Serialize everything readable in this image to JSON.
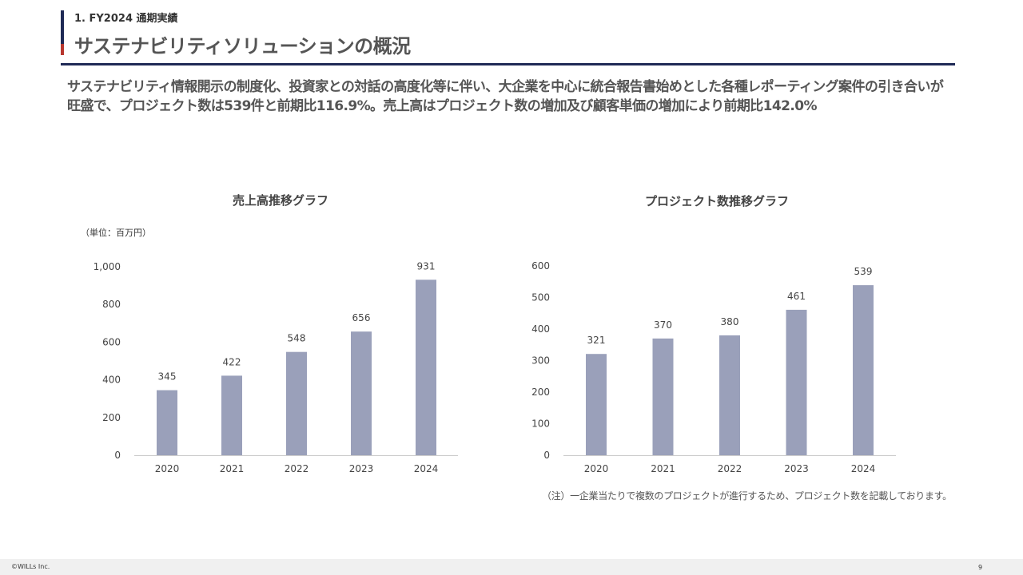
{
  "header": {
    "section": "1. FY2024 通期実績",
    "title": "サステナビリティソリューションの概況"
  },
  "lead": "サステナビリティ情報開示の制度化、投資家との対話の高度化等に伴い、大企業を中心に統合報告書始めとした各種レポーティング案件の引き合いが旺盛で、プロジェクト数は539件と前期比116.9%。売上高はプロジェクト数の増加及び顧客単価の増加により前期比142.0%",
  "colors": {
    "navy": "#1f2a56",
    "accent_red": "#b8372f",
    "bar": "#9aa0ba",
    "axis": "#cccccc"
  },
  "chart_data": [
    {
      "type": "bar",
      "title": "売上高推移グラフ",
      "unit": "（単位：百万円）",
      "categories": [
        "2020",
        "2021",
        "2022",
        "2023",
        "2024"
      ],
      "values": [
        345,
        422,
        548,
        656,
        931
      ],
      "value_labels": [
        "345",
        "422",
        "548",
        "656",
        "931"
      ],
      "ylim": [
        0,
        1000
      ],
      "yticks": [
        0,
        200,
        400,
        600,
        800,
        1000
      ],
      "ytick_labels": [
        "0",
        "200",
        "400",
        "600",
        "800",
        "1,000"
      ],
      "grid": false
    },
    {
      "type": "bar",
      "title": "プロジェクト数推移グラフ",
      "categories": [
        "2020",
        "2021",
        "2022",
        "2023",
        "2024"
      ],
      "values": [
        321,
        370,
        380,
        461,
        539
      ],
      "value_labels": [
        "321",
        "370",
        "380",
        "461",
        "539"
      ],
      "ylim": [
        0,
        600
      ],
      "yticks": [
        0,
        100,
        200,
        300,
        400,
        500,
        600
      ],
      "ytick_labels": [
        "0",
        "100",
        "200",
        "300",
        "400",
        "500",
        "600"
      ],
      "grid": false
    }
  ],
  "note": "（注）一企業当たりで複数のプロジェクトが進行するため、プロジェクト数を記載しております。",
  "footer": {
    "copyright": "©WILLs Inc.",
    "page": "9"
  }
}
